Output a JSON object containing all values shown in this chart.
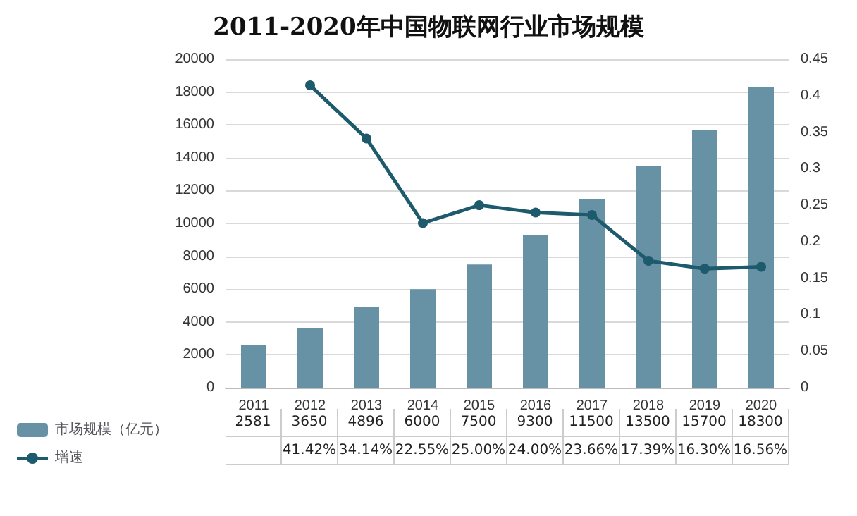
{
  "chart_data": {
    "type": "bar",
    "title": "2011-2020年中国物联网行业市场规模",
    "categories": [
      "2011",
      "2012",
      "2013",
      "2014",
      "2015",
      "2016",
      "2017",
      "2018",
      "2019",
      "2020"
    ],
    "series": [
      {
        "name": "市场规模（亿元）",
        "color": "#6792a6",
        "values": [
          2581,
          3650,
          4896,
          6000,
          7500,
          9300,
          11500,
          13500,
          15700,
          18300
        ],
        "value_labels": [
          "2581",
          "3650",
          "4896",
          "6000",
          "7500",
          "9300",
          "11500",
          "13500",
          "15700",
          "18300"
        ]
      },
      {
        "name": "增速",
        "type": "line",
        "axis": "y2",
        "color": "#1d5a6c",
        "values": [
          null,
          0.4142,
          0.3414,
          0.2255,
          0.25,
          0.24,
          0.2366,
          0.1739,
          0.163,
          0.1656
        ],
        "value_labels": [
          null,
          "41.42%",
          "34.14%",
          "22.55%",
          "25.00%",
          "24.00%",
          "23.66%",
          "17.39%",
          "16.30%",
          "16.56%"
        ]
      }
    ],
    "ylim": [
      0,
      20000
    ],
    "yticks": [
      0,
      2000,
      4000,
      6000,
      8000,
      10000,
      12000,
      14000,
      16000,
      18000,
      20000
    ],
    "y2lim": [
      0,
      0.45
    ],
    "y2ticks": [
      0,
      0.05,
      0.1,
      0.15,
      0.2,
      0.25,
      0.3,
      0.35,
      0.4,
      0.45
    ],
    "grid": "y",
    "legend": "bottom left",
    "marker": "circle",
    "line_style": "solid"
  }
}
